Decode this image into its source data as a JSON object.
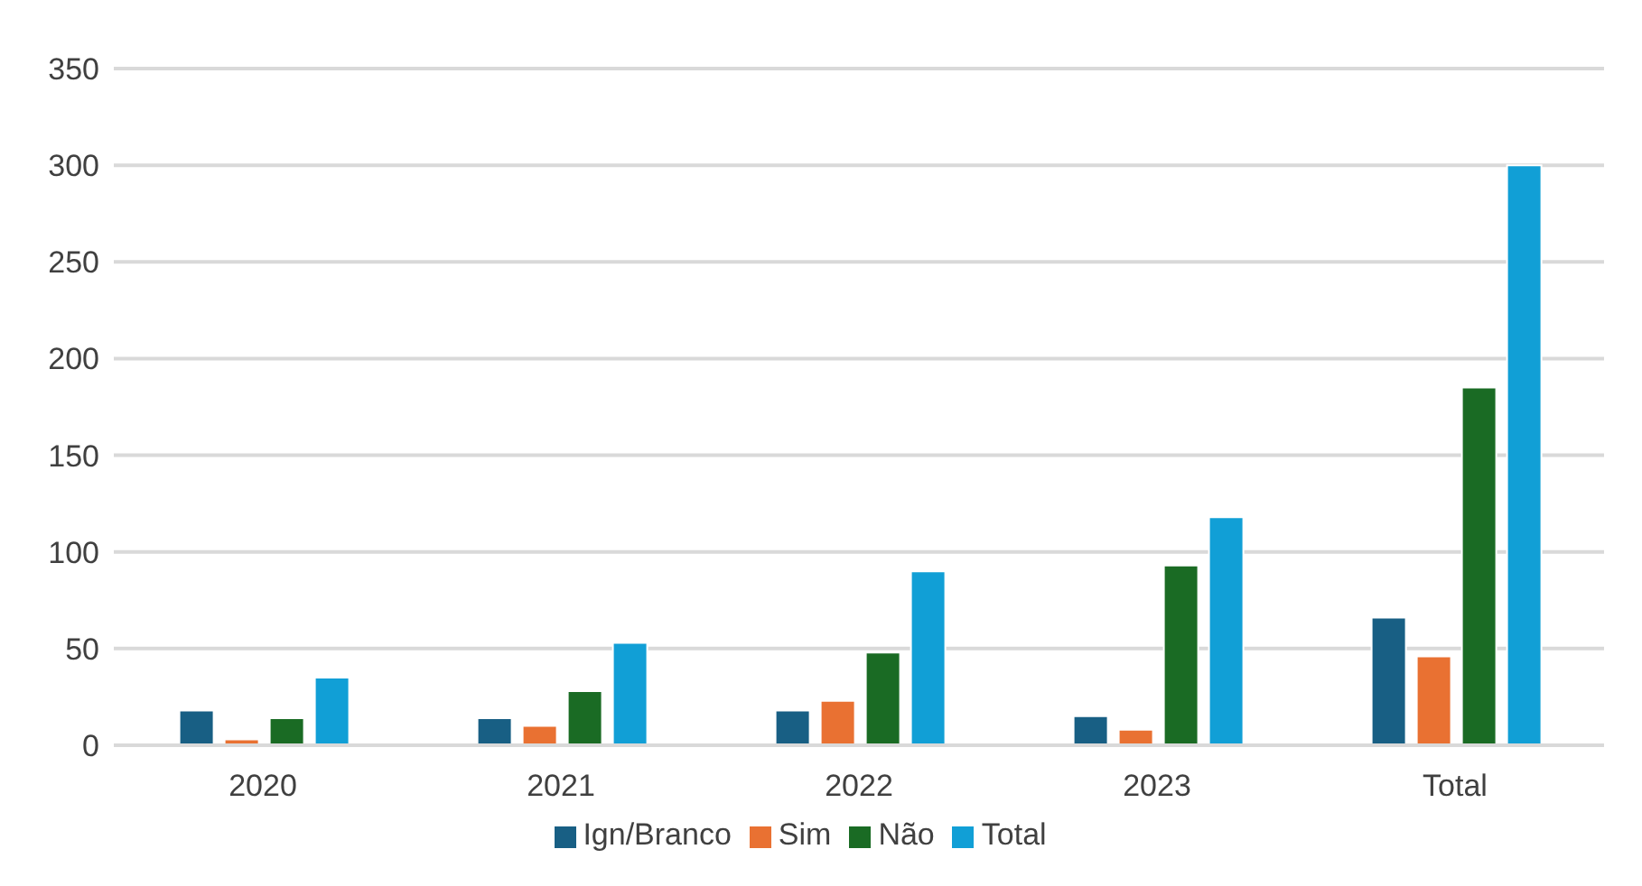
{
  "chart_data": {
    "type": "bar",
    "categories": [
      "2020",
      "2021",
      "2022",
      "2023",
      "Total"
    ],
    "series": [
      {
        "name": "Ign/Branco",
        "color": "#185f84",
        "values": [
          18,
          14,
          18,
          15,
          66
        ]
      },
      {
        "name": "Sim",
        "color": "#e97132",
        "values": [
          3,
          10,
          23,
          8,
          46
        ]
      },
      {
        "name": "Não",
        "color": "#1a6b24",
        "values": [
          14,
          28,
          48,
          93,
          185
        ]
      },
      {
        "name": "Total",
        "color": "#119fd6",
        "values": [
          35,
          53,
          90,
          118,
          300
        ]
      }
    ],
    "ylim": [
      0,
      350
    ],
    "yticks": [
      0,
      50,
      100,
      150,
      200,
      250,
      300,
      350
    ],
    "grid": "y",
    "legend": "bottom"
  }
}
